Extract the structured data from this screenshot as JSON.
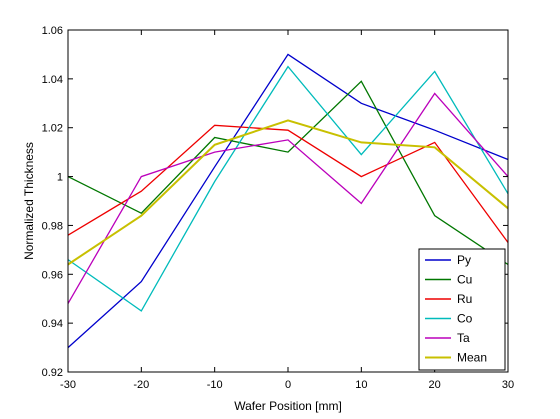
{
  "chart_data": {
    "type": "line",
    "title": "",
    "xlabel": "Wafer Position [mm]",
    "ylabel": "Normalized Thickness",
    "xlim": [
      -30,
      30
    ],
    "ylim": [
      0.92,
      1.06
    ],
    "xticks": [
      -30,
      -20,
      -10,
      0,
      10,
      20,
      30
    ],
    "yticks": [
      0.92,
      0.94,
      0.96,
      0.98,
      1,
      1.02,
      1.04,
      1.06
    ],
    "xtick_labels": [
      "-30",
      "-20",
      "-10",
      "0",
      "10",
      "20",
      "30"
    ],
    "ytick_labels": [
      "0.92",
      "0.94",
      "0.96",
      "0.98",
      "1",
      "1.02",
      "1.04",
      "1.06"
    ],
    "grid": false,
    "legend_position": "bottom-right",
    "x": [
      -30,
      -20,
      -10,
      0,
      10,
      20,
      30
    ],
    "series": [
      {
        "name": "Py",
        "color": "#0000cc",
        "values": [
          0.93,
          0.957,
          1.004,
          1.05,
          1.03,
          1.019,
          1.007
        ]
      },
      {
        "name": "Cu",
        "color": "#007700",
        "values": [
          1.0,
          0.985,
          1.016,
          1.01,
          1.039,
          0.984,
          0.964
        ]
      },
      {
        "name": "Ru",
        "color": "#ee0000",
        "values": [
          0.976,
          0.994,
          1.021,
          1.019,
          1.0,
          1.014,
          0.973
        ]
      },
      {
        "name": "Co",
        "color": "#00bbbb",
        "values": [
          0.966,
          0.945,
          0.998,
          1.045,
          1.009,
          1.043,
          0.993
        ]
      },
      {
        "name": "Ta",
        "color": "#bb00bb",
        "values": [
          0.948,
          1.0,
          1.01,
          1.015,
          0.989,
          1.034,
          1.0
        ]
      },
      {
        "name": "Mean",
        "color": "#c8c000",
        "values": [
          0.964,
          0.984,
          1.013,
          1.023,
          1.014,
          1.012,
          0.987
        ]
      }
    ]
  }
}
